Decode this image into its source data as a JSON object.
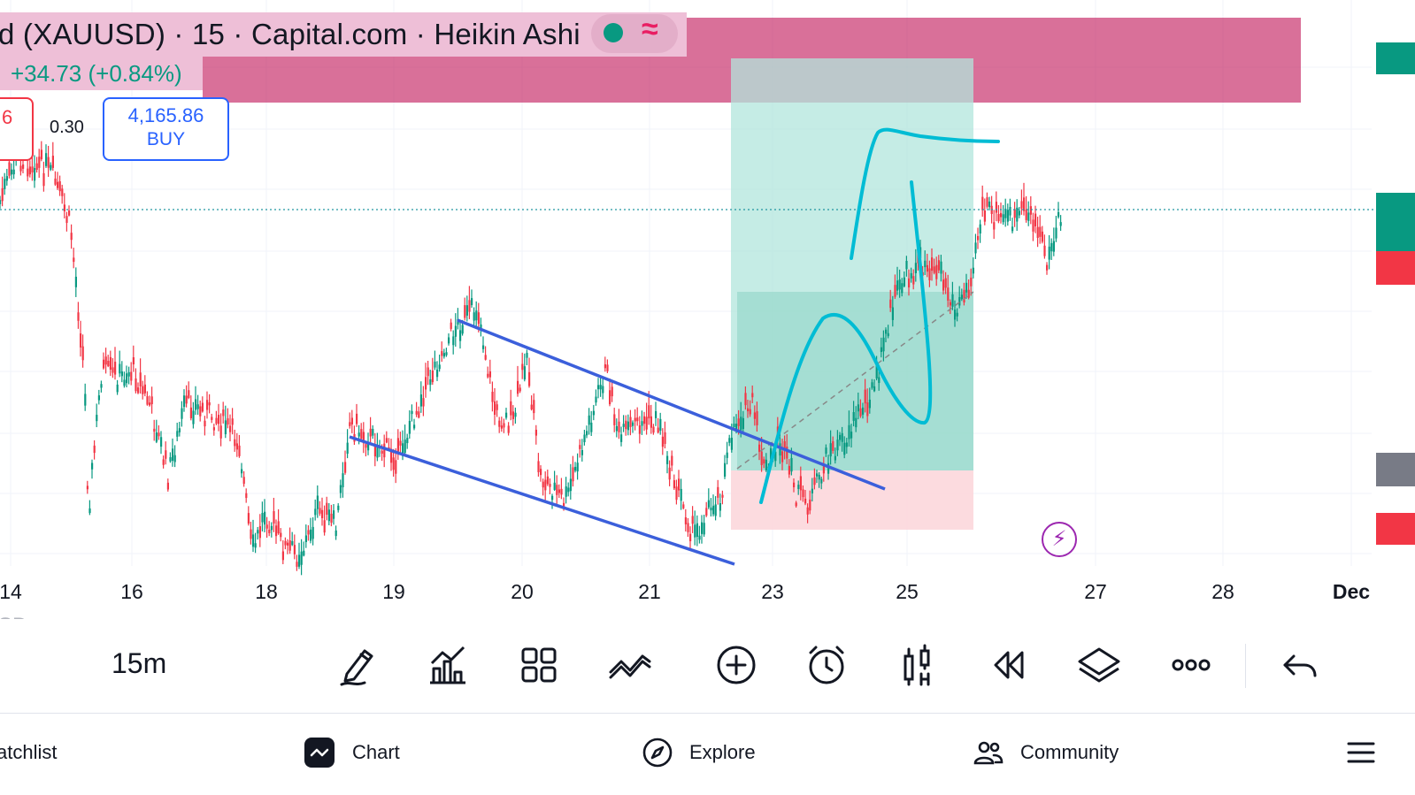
{
  "header": {
    "title": "d (XAUUSD) · 15 · Capital.com · Heikin Ashi",
    "status_color": "#089981",
    "change": "+34.73 (+0.84%)",
    "sell_fragment": "6",
    "spread": "0.30",
    "buy_price": "4,165.86",
    "buy_label": "BUY"
  },
  "xaxis": {
    "labels": [
      "14",
      "16",
      "18",
      "19",
      "20",
      "21",
      "23",
      "25",
      "27",
      "28",
      "Dec"
    ]
  },
  "currency_fragment": "SD",
  "colors": {
    "up": "#089981",
    "down": "#f23645",
    "channel": "#3b5fdb",
    "drawing": "#00bcd4",
    "zone": "#c2185b",
    "profit": "#b2e6dc",
    "loss": "#fcd7db"
  },
  "toolbar": {
    "interval": "15m",
    "tools": [
      "pencil-icon",
      "indicators-icon",
      "layout-grid-icon",
      "trend-icon",
      "add-icon",
      "alert-clock-icon",
      "bar-replay-icon",
      "rewind-icon",
      "layers-icon",
      "more-icon",
      "undo-icon"
    ]
  },
  "nav": {
    "watchlist": "atchlist",
    "chart": "Chart",
    "explore": "Explore",
    "community": "Community"
  }
}
